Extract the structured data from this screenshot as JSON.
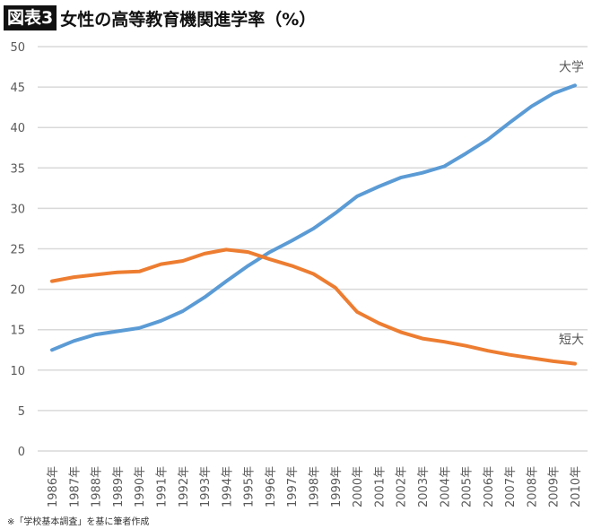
{
  "header": {
    "badge": "図表3",
    "title": "女性の高等教育機関進学率（%）"
  },
  "footnote": "※「学校基本調査」を基に筆者作成",
  "chart_data": {
    "type": "line",
    "title": "女性の高等教育機関進学率（%）",
    "categories": [
      "1986年",
      "1987年",
      "1988年",
      "1989年",
      "1990年",
      "1991年",
      "1992年",
      "1993年",
      "1994年",
      "1995年",
      "1996年",
      "1997年",
      "1998年",
      "1999年",
      "2000年",
      "2001年",
      "2002年",
      "2003年",
      "2004年",
      "2005年",
      "2006年",
      "2007年",
      "2008年",
      "2009年",
      "2010年"
    ],
    "series": [
      {
        "name": "大学",
        "color": "#5B9BD5",
        "values": [
          12.5,
          13.6,
          14.4,
          14.8,
          15.2,
          16.1,
          17.3,
          19.0,
          21.0,
          22.9,
          24.6,
          26.0,
          27.5,
          29.4,
          31.5,
          32.7,
          33.8,
          34.4,
          35.2,
          36.8,
          38.5,
          40.6,
          42.6,
          44.2,
          45.2
        ]
      },
      {
        "name": "短大",
        "color": "#ED7D31",
        "values": [
          21.0,
          21.5,
          21.8,
          22.1,
          22.2,
          23.1,
          23.5,
          24.4,
          24.9,
          24.6,
          23.7,
          22.9,
          21.9,
          20.2,
          17.2,
          15.8,
          14.7,
          13.9,
          13.5,
          13.0,
          12.4,
          11.9,
          11.5,
          11.1,
          10.8
        ]
      }
    ],
    "yticks": [
      0,
      5,
      10,
      15,
      20,
      25,
      30,
      35,
      40,
      45,
      50
    ],
    "ylim": [
      0,
      50
    ],
    "grid": true,
    "legend": "inline-labels"
  }
}
